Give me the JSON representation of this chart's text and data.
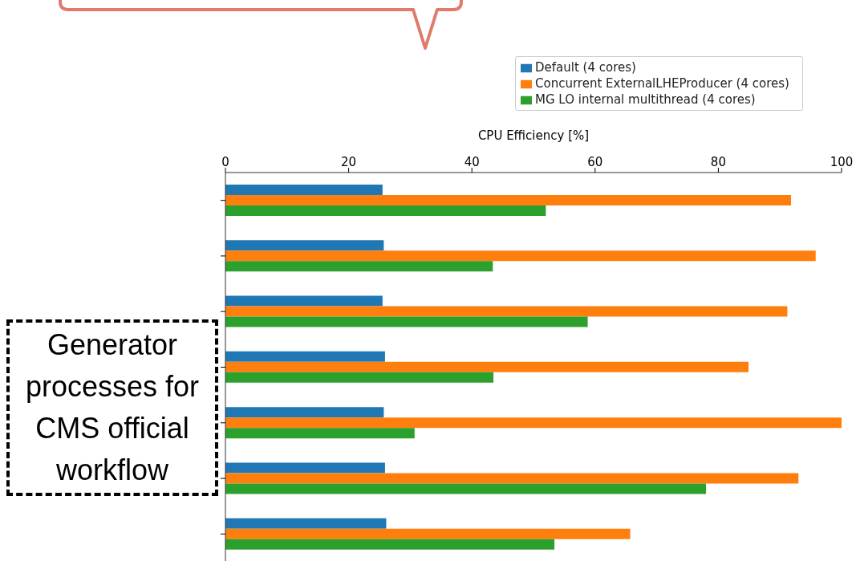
{
  "chart_data": {
    "type": "bar",
    "orientation": "horizontal",
    "xlabel": "CPU Efficiency [%]",
    "categories": [
      null,
      null,
      null,
      null,
      null,
      null,
      null
    ],
    "series": [
      {
        "name": "Default (4 cores)",
        "color": "#1f77b4",
        "values": [
          25.5,
          25.7,
          25.5,
          25.9,
          25.7,
          25.9,
          26.1
        ]
      },
      {
        "name": "Concurrent ExternalLHEProducer (4 cores)",
        "color": "#ff7f0e",
        "values": [
          91.8,
          95.8,
          91.2,
          84.9,
          100,
          93,
          65.7
        ]
      },
      {
        "name": "MG LO internal multithread (4 cores)",
        "color": "#2ca02c",
        "values": [
          52,
          43.4,
          58.8,
          43.5,
          30.7,
          78,
          53.4
        ]
      }
    ],
    "xlim": [
      0,
      100
    ],
    "xticks": [
      0,
      20,
      40,
      60,
      80,
      100
    ],
    "grid": false,
    "legend": "top right",
    "annotations": [
      "Generator processes for CMS official workflow"
    ]
  }
}
